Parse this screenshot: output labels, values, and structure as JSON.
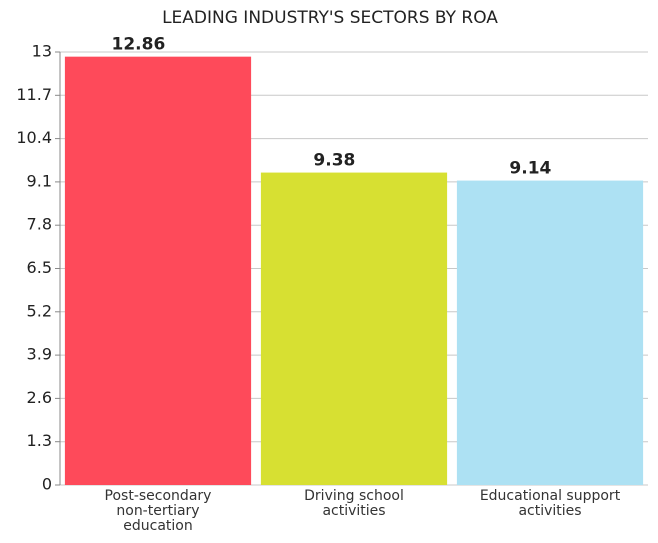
{
  "chart_data": {
    "type": "bar",
    "title": "LEADING INDUSTRY'S SECTORS BY ROA",
    "categories": [
      "Post-secondary non-tertiary education",
      "Driving school activities",
      "Educational support activities"
    ],
    "values": [
      12.86,
      9.38,
      9.14
    ],
    "colors": [
      "#fe4a5a",
      "#d7e032",
      "#ade1f3"
    ],
    "ylim": [
      0,
      13
    ],
    "yticks": [
      0,
      1.3,
      2.6,
      3.9,
      5.2,
      6.5,
      7.8,
      9.1,
      10.4,
      11.7,
      13
    ],
    "grid": true
  }
}
